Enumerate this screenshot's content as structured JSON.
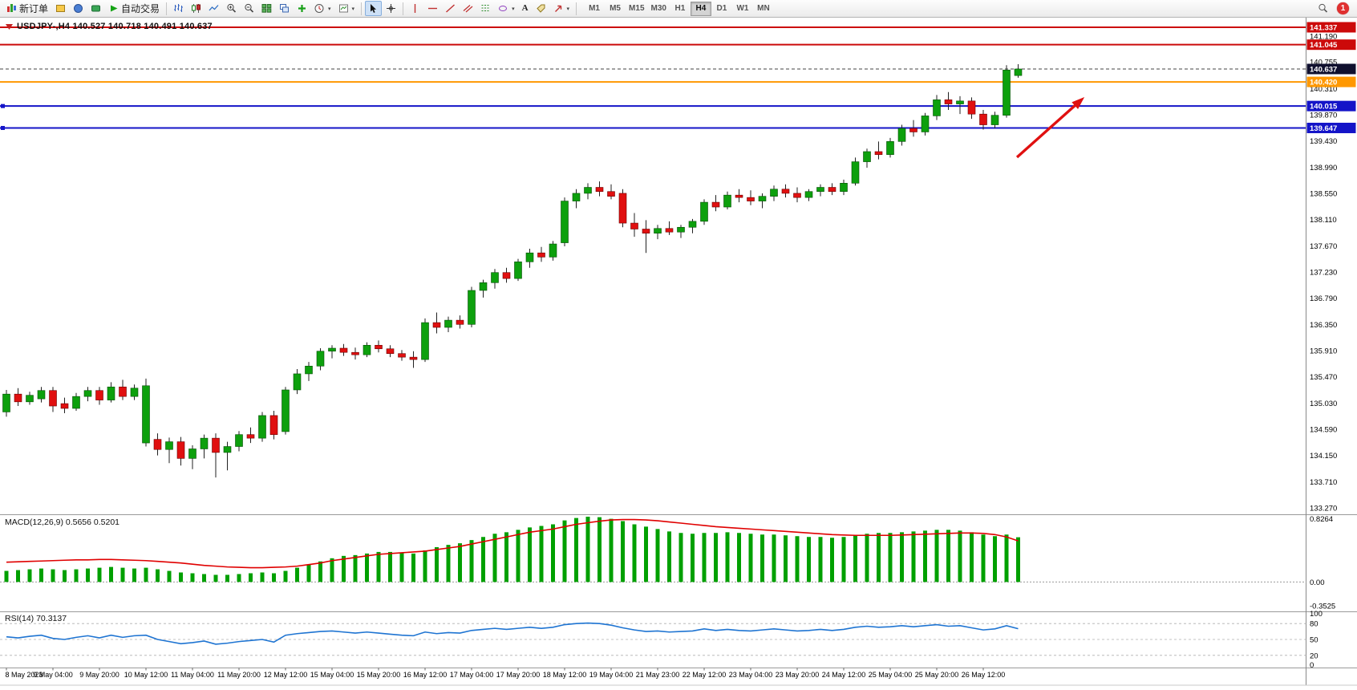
{
  "toolbar": {
    "new_order_label": "新订单",
    "autotrading_label": "自动交易",
    "timeframes": [
      "M1",
      "M5",
      "M15",
      "M30",
      "H1",
      "H4",
      "D1",
      "W1",
      "MN"
    ],
    "active_timeframe": "H4",
    "notification_count": "1",
    "icons": [
      "new-order-icon",
      "market-watch-icon",
      "navigator-icon",
      "terminal-icon",
      "autotrading-play-icon",
      "bar-chart-icon",
      "candlestick-chart-icon",
      "line-chart-icon",
      "zoom-in-icon",
      "zoom-out-icon",
      "tile-windows-icon",
      "cascade-windows-icon",
      "indicators-icon",
      "periods-clock-icon",
      "template-icon",
      "cursor-icon",
      "crosshair-icon",
      "vertical-line-icon",
      "horizontal-line-icon",
      "trendline-icon",
      "channel-icon",
      "fibonacci-icon",
      "shapes-icon",
      "text-icon",
      "label-icon",
      "arrows-icon",
      "search-icon"
    ]
  },
  "chart": {
    "title": "USDJPY-,H4 140.527 140.718 140.491 140.637",
    "symbol": "USDJPY-",
    "period": "H4",
    "open": "140.527",
    "high": "140.718",
    "low": "140.491",
    "close": "140.637"
  },
  "chart_data": {
    "type": "candlestick",
    "symbol": "USDJPY-",
    "timeframe": "H4",
    "colors": {
      "bull": "#0da00d",
      "bear": "#e01010",
      "wick": "#222222",
      "macd_hist": "#00a000",
      "macd_signal": "#e00000",
      "rsi_line": "#1e74d2"
    },
    "price_axis": {
      "max": 141.337,
      "min": 133.27,
      "ticks": [
        141.19,
        140.755,
        140.31,
        139.87,
        139.43,
        138.99,
        138.55,
        138.11,
        137.67,
        137.23,
        136.79,
        136.35,
        135.91,
        135.47,
        135.03,
        134.59,
        134.15,
        133.71,
        133.27
      ]
    },
    "levels": [
      {
        "name": "resistance-line-1",
        "price": 141.337,
        "color": "#cc0a0a",
        "handles": false
      },
      {
        "name": "resistance-line-2",
        "price": 141.045,
        "color": "#cc0a0a",
        "handles": false
      },
      {
        "name": "pivot-line",
        "price": 140.42,
        "color": "#ff9800",
        "handles": false
      },
      {
        "name": "support-line-1",
        "price": 140.015,
        "color": "#1414c8",
        "handles": true
      },
      {
        "name": "support-line-2",
        "price": 139.647,
        "color": "#1414c8",
        "handles": true
      }
    ],
    "current_price": {
      "value": 140.637,
      "badge_color": "#10102e"
    },
    "annotations": [
      {
        "type": "arrow",
        "x1_index": 86.9,
        "price1": 139.155,
        "x2_index": 92.7,
        "price2": 140.165,
        "color": "#e01010"
      }
    ],
    "candles": [
      [
        134.88,
        135.25,
        134.8,
        135.18
      ],
      [
        135.18,
        135.28,
        134.98,
        135.05
      ],
      [
        135.05,
        135.22,
        135.0,
        135.16
      ],
      [
        135.1,
        135.3,
        135.04,
        135.24
      ],
      [
        135.24,
        135.3,
        134.88,
        134.98
      ],
      [
        135.02,
        135.12,
        134.86,
        134.94
      ],
      [
        134.94,
        135.2,
        134.9,
        135.14
      ],
      [
        135.14,
        135.3,
        135.06,
        135.24
      ],
      [
        135.24,
        135.3,
        135.0,
        135.08
      ],
      [
        135.08,
        135.38,
        135.04,
        135.3
      ],
      [
        135.3,
        135.42,
        135.08,
        135.14
      ],
      [
        135.14,
        135.34,
        135.08,
        135.28
      ],
      [
        134.36,
        135.44,
        134.3,
        135.32
      ],
      [
        134.42,
        134.52,
        134.15,
        134.25
      ],
      [
        134.25,
        134.45,
        134.02,
        134.38
      ],
      [
        134.38,
        134.46,
        133.98,
        134.1
      ],
      [
        134.1,
        134.32,
        133.92,
        134.26
      ],
      [
        134.26,
        134.5,
        134.1,
        134.44
      ],
      [
        134.44,
        134.52,
        133.78,
        134.2
      ],
      [
        134.2,
        134.38,
        133.9,
        134.3
      ],
      [
        134.3,
        134.56,
        134.22,
        134.5
      ],
      [
        134.5,
        134.62,
        134.36,
        134.44
      ],
      [
        134.44,
        134.88,
        134.38,
        134.82
      ],
      [
        134.82,
        134.9,
        134.42,
        134.5
      ],
      [
        134.55,
        135.3,
        134.5,
        135.25
      ],
      [
        135.25,
        135.6,
        135.18,
        135.52
      ],
      [
        135.52,
        135.72,
        135.4,
        135.65
      ],
      [
        135.65,
        135.95,
        135.58,
        135.9
      ],
      [
        135.9,
        136.0,
        135.78,
        135.95
      ],
      [
        135.95,
        136.02,
        135.82,
        135.88
      ],
      [
        135.88,
        135.96,
        135.76,
        135.84
      ],
      [
        135.84,
        136.05,
        135.8,
        136.0
      ],
      [
        136.0,
        136.08,
        135.88,
        135.94
      ],
      [
        135.94,
        136.0,
        135.8,
        135.86
      ],
      [
        135.86,
        135.92,
        135.74,
        135.8
      ],
      [
        135.8,
        135.9,
        135.62,
        135.76
      ],
      [
        135.76,
        136.45,
        135.72,
        136.38
      ],
      [
        136.38,
        136.55,
        136.2,
        136.3
      ],
      [
        136.3,
        136.48,
        136.22,
        136.42
      ],
      [
        136.42,
        136.5,
        136.28,
        136.35
      ],
      [
        136.35,
        136.98,
        136.3,
        136.92
      ],
      [
        136.92,
        137.1,
        136.8,
        137.05
      ],
      [
        137.05,
        137.28,
        136.95,
        137.22
      ],
      [
        137.22,
        137.3,
        137.05,
        137.12
      ],
      [
        137.12,
        137.45,
        137.08,
        137.4
      ],
      [
        137.4,
        137.62,
        137.3,
        137.55
      ],
      [
        137.55,
        137.65,
        137.4,
        137.48
      ],
      [
        137.48,
        137.75,
        137.42,
        137.7
      ],
      [
        137.72,
        138.48,
        137.66,
        138.42
      ],
      [
        138.42,
        138.62,
        138.3,
        138.55
      ],
      [
        138.55,
        138.72,
        138.45,
        138.65
      ],
      [
        138.65,
        138.75,
        138.5,
        138.58
      ],
      [
        138.58,
        138.7,
        138.45,
        138.5
      ],
      [
        138.55,
        138.62,
        137.98,
        138.05
      ],
      [
        138.05,
        138.22,
        137.82,
        137.95
      ],
      [
        137.95,
        138.1,
        137.55,
        137.88
      ],
      [
        137.88,
        138.02,
        137.78,
        137.96
      ],
      [
        137.96,
        138.08,
        137.85,
        137.9
      ],
      [
        137.9,
        138.02,
        137.8,
        137.98
      ],
      [
        137.98,
        138.12,
        137.88,
        138.08
      ],
      [
        138.08,
        138.45,
        138.02,
        138.4
      ],
      [
        138.4,
        138.52,
        138.25,
        138.32
      ],
      [
        138.32,
        138.58,
        138.28,
        138.52
      ],
      [
        138.52,
        138.62,
        138.4,
        138.48
      ],
      [
        138.48,
        138.6,
        138.35,
        138.42
      ],
      [
        138.42,
        138.55,
        138.3,
        138.5
      ],
      [
        138.5,
        138.68,
        138.42,
        138.62
      ],
      [
        138.62,
        138.7,
        138.48,
        138.55
      ],
      [
        138.55,
        138.65,
        138.4,
        138.48
      ],
      [
        138.48,
        138.62,
        138.42,
        138.58
      ],
      [
        138.58,
        138.7,
        138.5,
        138.65
      ],
      [
        138.65,
        138.72,
        138.52,
        138.58
      ],
      [
        138.58,
        138.78,
        138.52,
        138.72
      ],
      [
        138.72,
        139.15,
        138.68,
        139.08
      ],
      [
        139.08,
        139.3,
        138.98,
        139.25
      ],
      [
        139.25,
        139.42,
        139.12,
        139.2
      ],
      [
        139.2,
        139.48,
        139.15,
        139.42
      ],
      [
        139.42,
        139.7,
        139.35,
        139.64
      ],
      [
        139.64,
        139.78,
        139.5,
        139.58
      ],
      [
        139.58,
        139.9,
        139.52,
        139.85
      ],
      [
        139.85,
        140.2,
        139.78,
        140.12
      ],
      [
        140.12,
        140.25,
        139.95,
        140.05
      ],
      [
        140.05,
        140.18,
        139.88,
        140.1
      ],
      [
        140.1,
        140.16,
        139.8,
        139.88
      ],
      [
        139.88,
        139.95,
        139.62,
        139.7
      ],
      [
        139.7,
        139.92,
        139.64,
        139.86
      ],
      [
        139.86,
        140.7,
        139.82,
        140.62
      ],
      [
        140.527,
        140.718,
        140.491,
        140.637
      ]
    ],
    "x_labels": [
      "8 May 2023",
      "9 May 04:00",
      "9 May 20:00",
      "10 May 12:00",
      "11 May 04:00",
      "11 May 20:00",
      "12 May 12:00",
      "15 May 04:00",
      "15 May 20:00",
      "16 May 12:00",
      "17 May 04:00",
      "17 May 20:00",
      "18 May 12:00",
      "19 May 04:00",
      "21 May 23:00",
      "22 May 12:00",
      "23 May 04:00",
      "23 May 20:00",
      "24 May 12:00",
      "25 May 04:00",
      "25 May 20:00",
      "26 May 12:00"
    ],
    "macd": {
      "label": "MACD(12,26,9) 0.5656 0.5201",
      "max": 0.8264,
      "min": -0.3525,
      "axis_labels": [
        {
          "value": 0.8264,
          "text": "0.8264"
        },
        {
          "value": 0,
          "text": "0.00"
        },
        {
          "value": -0.3525,
          "text": "-0.3525"
        }
      ],
      "values": [
        0.14,
        0.15,
        0.16,
        0.17,
        0.16,
        0.15,
        0.16,
        0.17,
        0.18,
        0.19,
        0.18,
        0.17,
        0.18,
        0.16,
        0.14,
        0.12,
        0.11,
        0.1,
        0.09,
        0.09,
        0.1,
        0.11,
        0.12,
        0.11,
        0.14,
        0.18,
        0.22,
        0.26,
        0.3,
        0.33,
        0.34,
        0.36,
        0.38,
        0.38,
        0.37,
        0.36,
        0.4,
        0.44,
        0.47,
        0.49,
        0.53,
        0.57,
        0.61,
        0.63,
        0.66,
        0.69,
        0.71,
        0.73,
        0.78,
        0.81,
        0.8264,
        0.82,
        0.8,
        0.77,
        0.73,
        0.7,
        0.67,
        0.64,
        0.62,
        0.61,
        0.62,
        0.62,
        0.63,
        0.62,
        0.61,
        0.6,
        0.6,
        0.59,
        0.58,
        0.57,
        0.57,
        0.56,
        0.57,
        0.59,
        0.61,
        0.62,
        0.62,
        0.63,
        0.64,
        0.65,
        0.66,
        0.66,
        0.65,
        0.63,
        0.6,
        0.58,
        0.6,
        0.5656
      ],
      "signal": [
        0.25,
        0.255,
        0.26,
        0.265,
        0.27,
        0.275,
        0.28,
        0.28,
        0.285,
        0.285,
        0.28,
        0.275,
        0.27,
        0.26,
        0.25,
        0.24,
        0.225,
        0.21,
        0.2,
        0.19,
        0.185,
        0.18,
        0.18,
        0.185,
        0.19,
        0.2,
        0.22,
        0.24,
        0.27,
        0.29,
        0.31,
        0.33,
        0.35,
        0.36,
        0.37,
        0.38,
        0.39,
        0.41,
        0.43,
        0.45,
        0.48,
        0.51,
        0.54,
        0.57,
        0.6,
        0.63,
        0.65,
        0.67,
        0.7,
        0.73,
        0.75,
        0.77,
        0.785,
        0.79,
        0.79,
        0.785,
        0.775,
        0.76,
        0.745,
        0.73,
        0.715,
        0.7,
        0.69,
        0.68,
        0.67,
        0.66,
        0.65,
        0.64,
        0.63,
        0.62,
        0.61,
        0.6,
        0.595,
        0.59,
        0.59,
        0.59,
        0.59,
        0.595,
        0.6,
        0.605,
        0.61,
        0.615,
        0.62,
        0.62,
        0.615,
        0.6,
        0.57,
        0.5201
      ]
    },
    "rsi": {
      "label": "RSI(14) 70.3137",
      "axis_labels": [
        {
          "value": 100,
          "text": "100"
        },
        {
          "value": 80,
          "text": "80"
        },
        {
          "value": 50,
          "text": "50"
        },
        {
          "value": 20,
          "text": "20"
        },
        {
          "value": 0,
          "text": "0"
        }
      ],
      "dashed_levels": [
        80,
        50,
        20
      ],
      "values": [
        55,
        53,
        56,
        58,
        52,
        50,
        54,
        57,
        53,
        58,
        54,
        57,
        58,
        50,
        46,
        42,
        44,
        47,
        41,
        43,
        46,
        48,
        50,
        45,
        58,
        61,
        63,
        65,
        66,
        64,
        62,
        64,
        62,
        60,
        58,
        57,
        64,
        61,
        63,
        62,
        67,
        69,
        71,
        69,
        71,
        73,
        71,
        73,
        78,
        80,
        81,
        80,
        77,
        72,
        68,
        65,
        66,
        64,
        65,
        66,
        70,
        67,
        69,
        67,
        66,
        68,
        70,
        68,
        66,
        67,
        69,
        67,
        69,
        73,
        75,
        73,
        74,
        76,
        74,
        76,
        78,
        75,
        76,
        72,
        68,
        70,
        76,
        70.3
      ]
    }
  }
}
